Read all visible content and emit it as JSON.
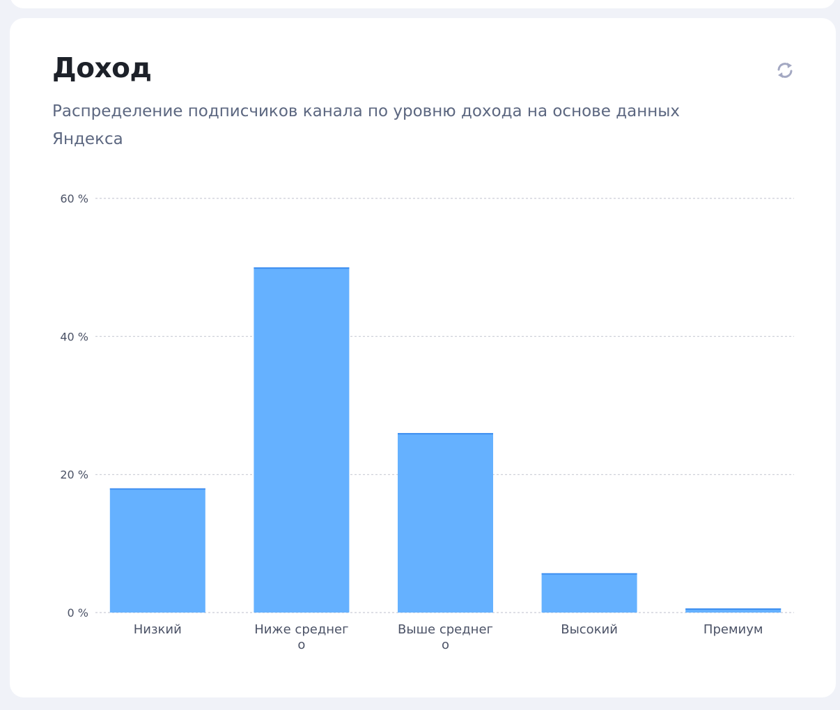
{
  "card": {
    "title": "Доход",
    "subtitle": "Распределение подписчиков канала по уровню дохода на основе данных Яндекса",
    "refresh_icon": "refresh-icon"
  },
  "chart_data": {
    "type": "bar",
    "title": "",
    "xlabel": "",
    "ylabel": "",
    "categories": [
      "Низкий",
      "Ниже среднего",
      "Выше среднего",
      "Высокий",
      "Премиум"
    ],
    "values": [
      18,
      50,
      26,
      5.7,
      0.6
    ],
    "unit": "%",
    "ylim": [
      0,
      60
    ],
    "yticks": [
      0,
      20,
      40,
      60
    ],
    "ytick_labels": [
      "0 %",
      "20 %",
      "40 %",
      "60 %"
    ],
    "grid": true,
    "bar_color": "#65b1ff",
    "bar_top_color": "#3d8ef0"
  }
}
